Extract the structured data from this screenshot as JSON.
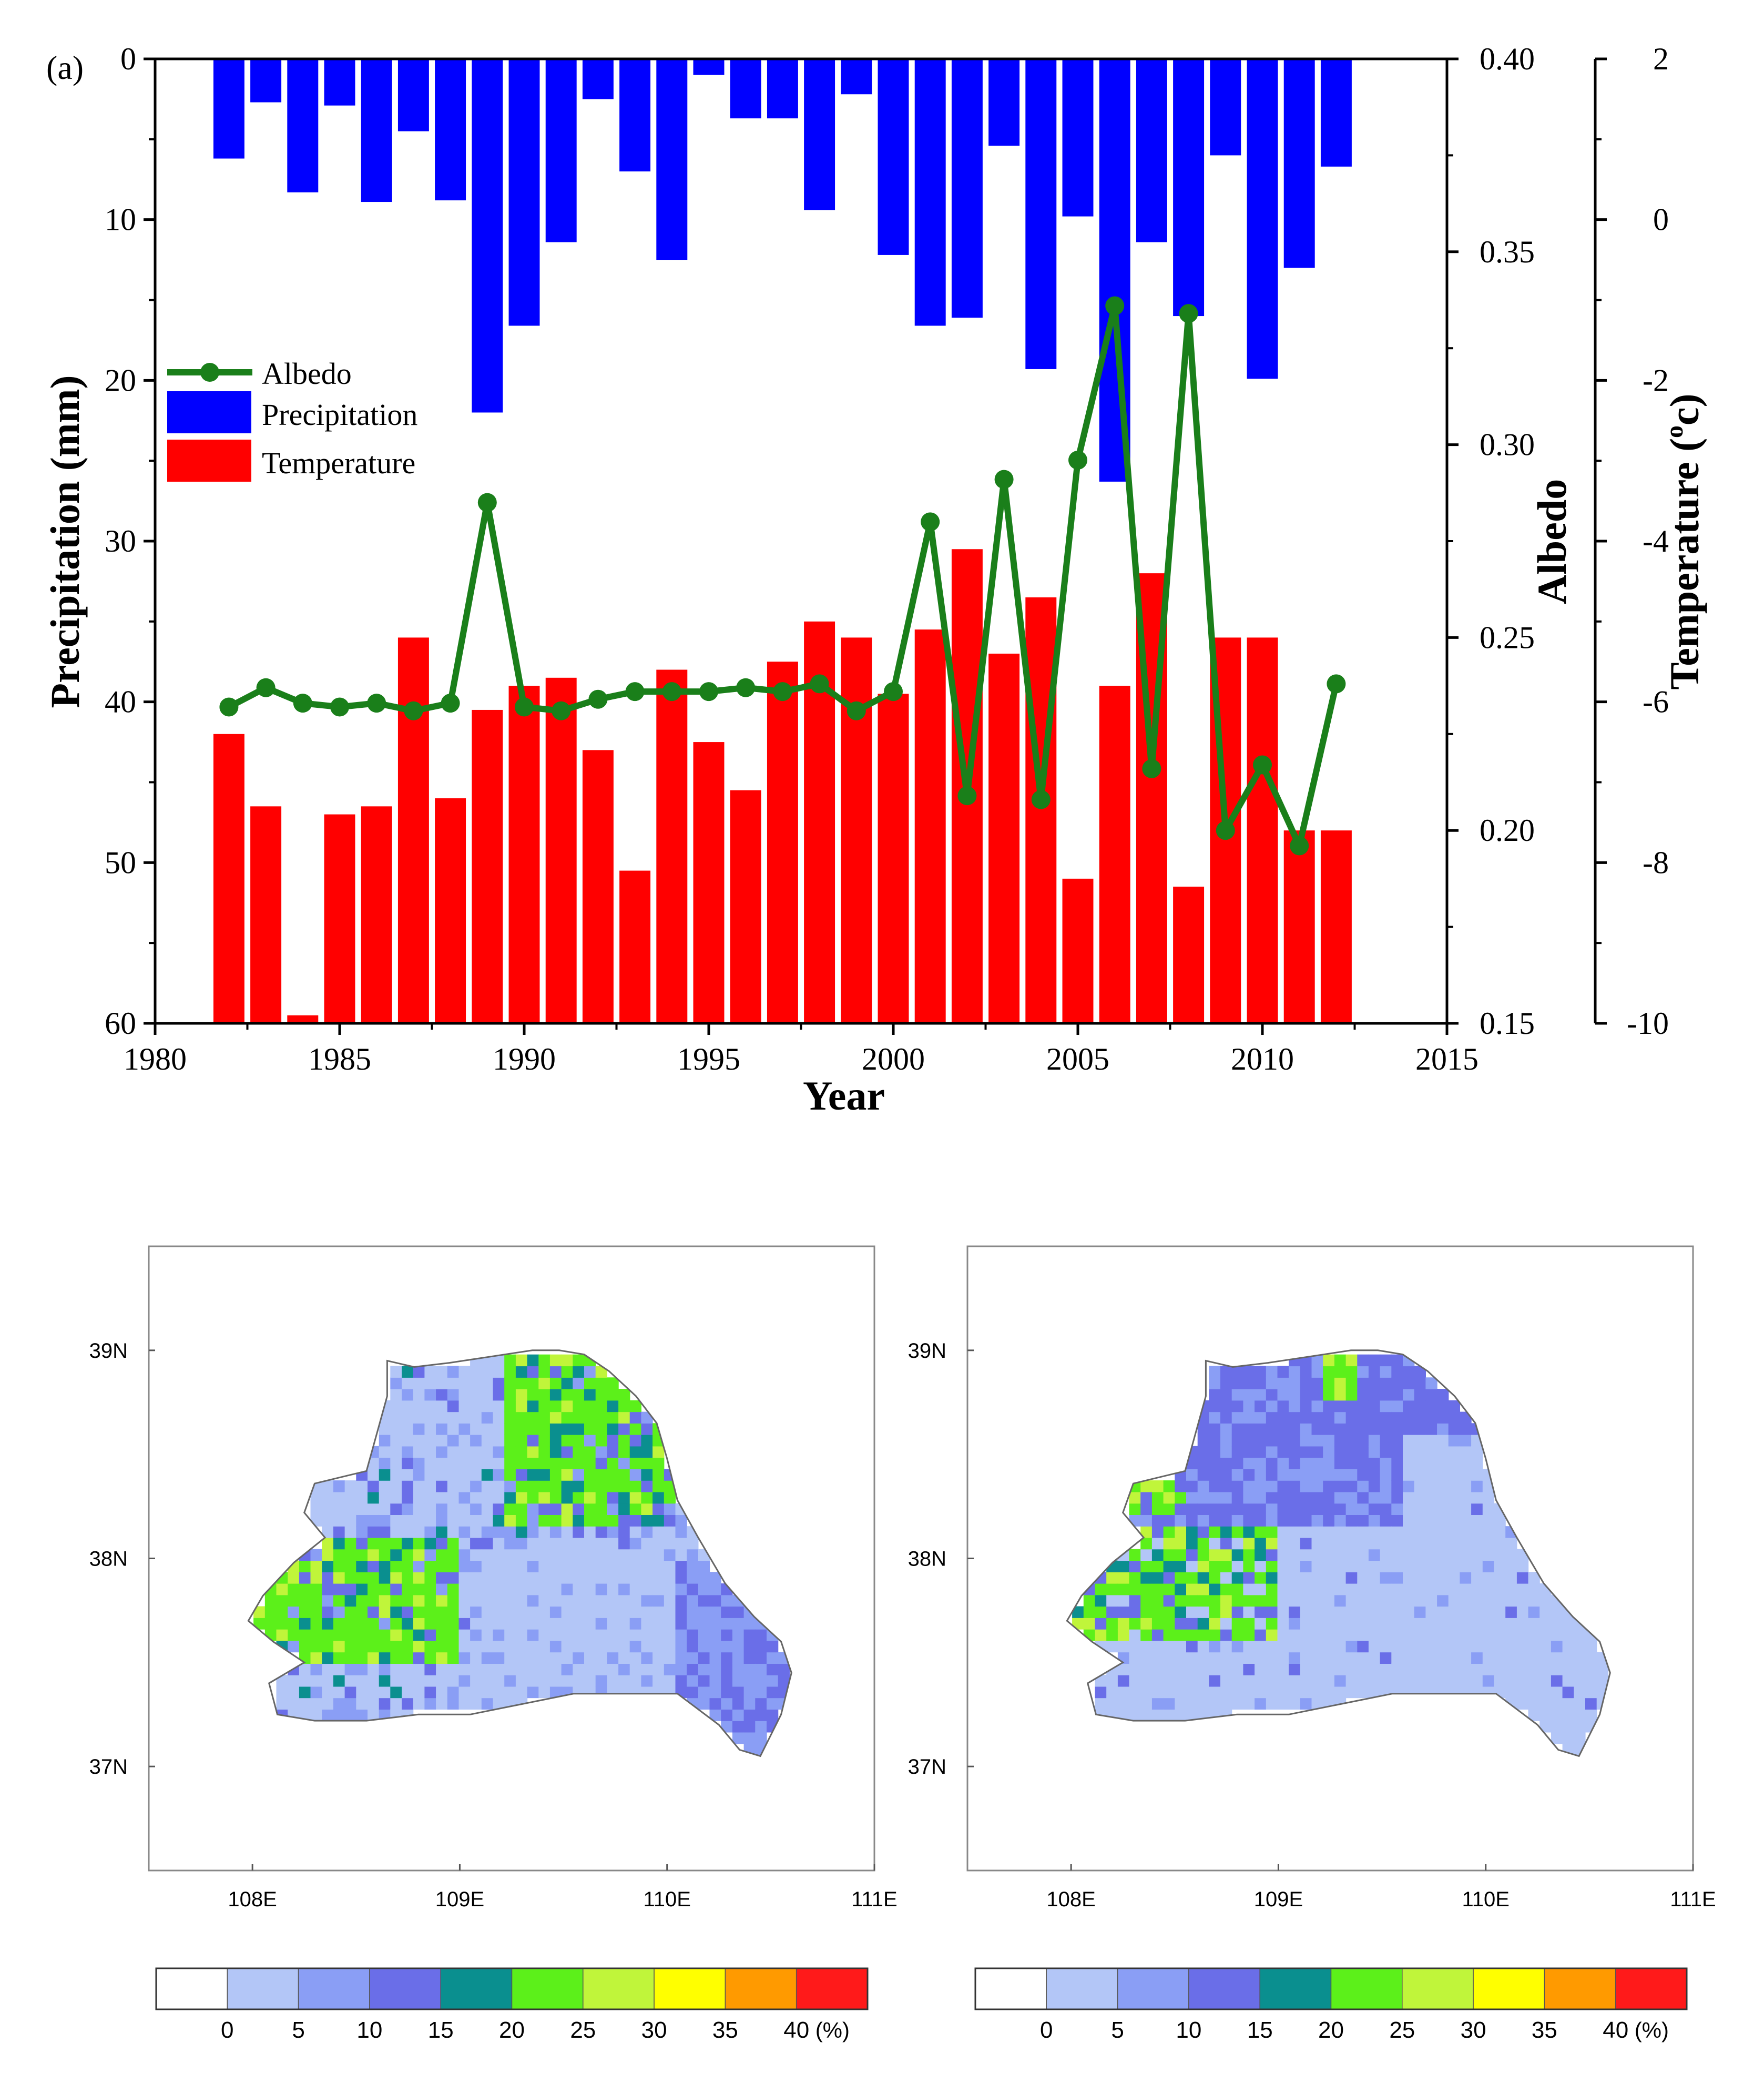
{
  "chart_data": [
    {
      "type": "bar+line",
      "panel_label": "(a)",
      "xlabel": "Year",
      "xlim": [
        1980,
        2015
      ],
      "xticks": [
        1980,
        1985,
        1990,
        1995,
        2000,
        2005,
        2010,
        2015
      ],
      "years": [
        1982,
        1983,
        1984,
        1985,
        1986,
        1987,
        1988,
        1989,
        1990,
        1991,
        1992,
        1993,
        1994,
        1995,
        1996,
        1997,
        1998,
        1999,
        2000,
        2001,
        2002,
        2003,
        2004,
        2005,
        2006,
        2007,
        2008,
        2009,
        2010,
        2011,
        2012
      ],
      "precipitation": {
        "name": "Precipitation",
        "axis_label": "Precipitation (mm)",
        "ylim": [
          60,
          0
        ],
        "ticks": [
          0,
          10,
          20,
          30,
          40,
          50,
          60
        ],
        "color": "#0000ff",
        "values": [
          6.2,
          2.7,
          8.3,
          2.9,
          8.9,
          4.5,
          8.8,
          22.0,
          16.6,
          11.4,
          2.5,
          7.0,
          12.5,
          1.0,
          3.7,
          3.7,
          9.4,
          2.2,
          12.2,
          16.6,
          16.1,
          5.4,
          19.3,
          9.8,
          26.3,
          11.4,
          16.0,
          6.0,
          19.9,
          13.0,
          6.7
        ]
      },
      "temperature": {
        "name": "Temperature",
        "axis_label": "Temperature",
        "axis_unit_sup": "o",
        "axis_unit": "c",
        "ylim": [
          -10,
          2
        ],
        "ticks": [
          2,
          0,
          -2,
          -4,
          -6,
          -8,
          -10
        ],
        "color": "#ff0000",
        "values": [
          -6.4,
          -7.3,
          -9.9,
          -7.4,
          -7.3,
          -5.2,
          -7.2,
          -6.1,
          -5.8,
          -5.7,
          -6.6,
          -8.1,
          -5.6,
          -6.5,
          -7.1,
          -5.5,
          -5.0,
          -5.2,
          -5.9,
          -5.1,
          -4.1,
          -5.4,
          -4.7,
          -8.2,
          -5.8,
          -4.4,
          -8.3,
          -5.2,
          -5.2,
          -7.6,
          -7.6
        ]
      },
      "albedo": {
        "name": "Albedo",
        "axis_label": "Albedo",
        "ylim": [
          0.15,
          0.4
        ],
        "ticks": [
          0.4,
          0.35,
          0.3,
          0.25,
          0.2,
          0.15
        ],
        "color": "#1a7f1a",
        "values": [
          0.232,
          0.237,
          0.233,
          0.232,
          0.233,
          0.231,
          0.233,
          0.285,
          0.232,
          0.231,
          0.234,
          0.236,
          0.236,
          0.236,
          0.237,
          0.236,
          0.238,
          0.231,
          0.236,
          0.28,
          0.209,
          0.291,
          0.208,
          0.296,
          0.336,
          0.216,
          0.334,
          0.2,
          0.217,
          0.196,
          0.238
        ]
      },
      "legend_position": "middle-left"
    },
    {
      "type": "heatmap",
      "panel": "map-left",
      "lat_ticks": [
        "39N",
        "38N",
        "37N"
      ],
      "lon_ticks": [
        "108E",
        "109E",
        "110E",
        "111E"
      ],
      "lat_range": [
        36.5,
        39.5
      ],
      "lon_range": [
        107.5,
        111.0
      ],
      "colorbar": {
        "labels": [
          "0",
          "5",
          "10",
          "15",
          "20",
          "25",
          "30",
          "35",
          "40"
        ],
        "unit": "(%)",
        "colors": [
          "#ffffff",
          "#b3c6f7",
          "#8a9ef5",
          "#6a6ee8",
          "#0a8f8f",
          "#5cf01a",
          "#c0f53a",
          "#ffff00",
          "#ff9a00",
          "#ff1a1a"
        ]
      }
    },
    {
      "type": "heatmap",
      "panel": "map-right",
      "lat_ticks": [
        "39N",
        "38N",
        "37N"
      ],
      "lon_ticks": [
        "108E",
        "109E",
        "110E",
        "111E"
      ],
      "lat_range": [
        36.5,
        39.5
      ],
      "lon_range": [
        107.5,
        111.0
      ],
      "colorbar": {
        "labels": [
          "0",
          "5",
          "10",
          "15",
          "20",
          "25",
          "30",
          "35",
          "40"
        ],
        "unit": "(%)",
        "colors": [
          "#ffffff",
          "#b3c6f7",
          "#8a9ef5",
          "#6a6ee8",
          "#0a8f8f",
          "#5cf01a",
          "#c0f53a",
          "#ffff00",
          "#ff9a00",
          "#ff1a1a"
        ]
      }
    }
  ]
}
